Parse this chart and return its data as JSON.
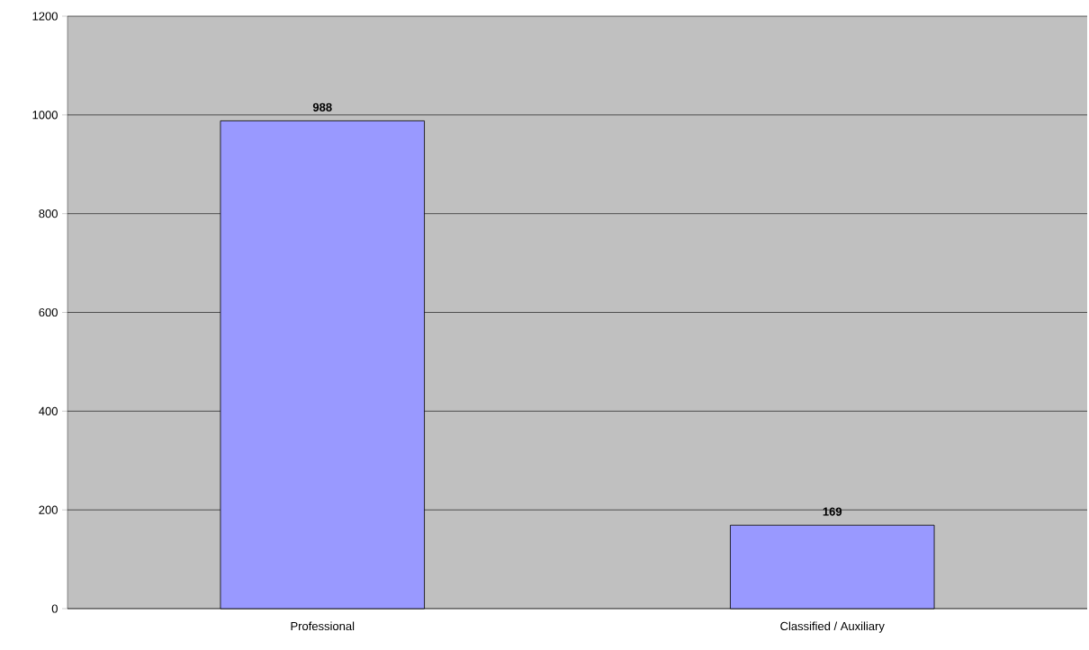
{
  "chart_data": {
    "type": "bar",
    "categories": [
      "Professional",
      "Classified / Auxiliary"
    ],
    "values": [
      988,
      169
    ],
    "color": "#9999ff",
    "ylim": [
      0,
      1200
    ],
    "yticks": [
      0,
      200,
      400,
      600,
      800,
      1000,
      1200
    ],
    "grid": "y",
    "data_labels": true
  }
}
